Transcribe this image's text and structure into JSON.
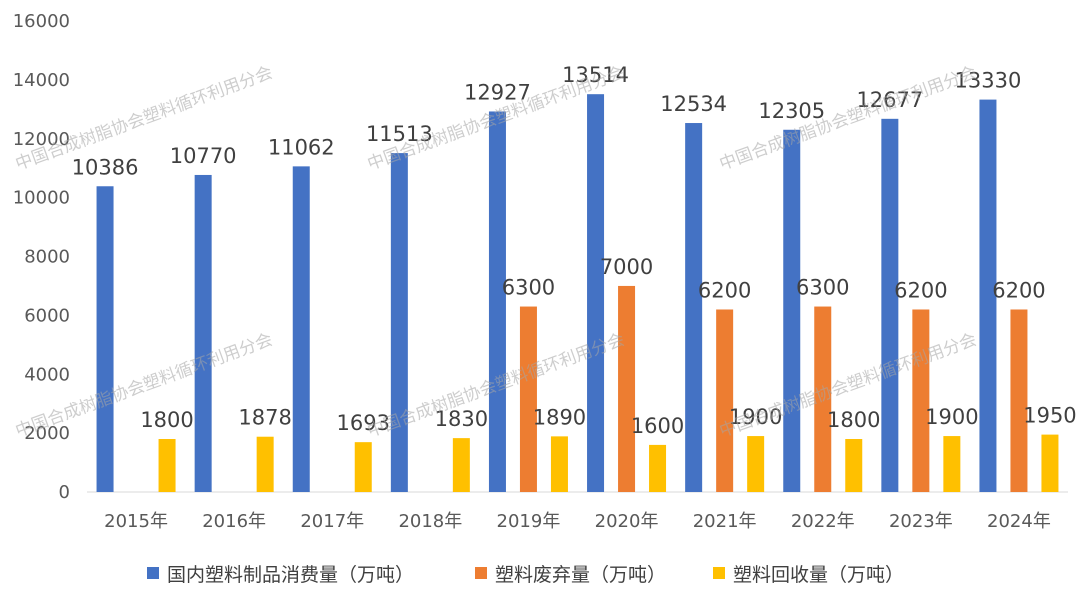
{
  "chart_data": {
    "type": "bar",
    "categories": [
      "2015年",
      "2016年",
      "2017年",
      "2018年",
      "2019年",
      "2020年",
      "2021年",
      "2022年",
      "2023年",
      "2024年"
    ],
    "series": [
      {
        "name": "国内塑料制品消费量（万吨）",
        "color": "#4472c4",
        "values": [
          10386,
          10770,
          11062,
          11513,
          12927,
          13514,
          12534,
          12305,
          12677,
          13330
        ]
      },
      {
        "name": "塑料废弃量（万吨）",
        "color": "#ed7d31",
        "values": [
          null,
          null,
          null,
          null,
          6300,
          7000,
          6200,
          6300,
          6200,
          6200
        ]
      },
      {
        "name": "塑料回收量（万吨）",
        "color": "#ffc000",
        "values": [
          1800,
          1878,
          1693,
          1830,
          1890,
          1600,
          1900,
          1800,
          1900,
          1950
        ]
      }
    ],
    "ylim": [
      0,
      16000
    ],
    "yticks": [
      "0",
      "2000",
      "4000",
      "6000",
      "8000",
      "10000",
      "12000",
      "14000",
      "16000"
    ],
    "grid": false,
    "legend": "bottom"
  },
  "watermark": "中国合成树脂协会塑料循环利用分会"
}
